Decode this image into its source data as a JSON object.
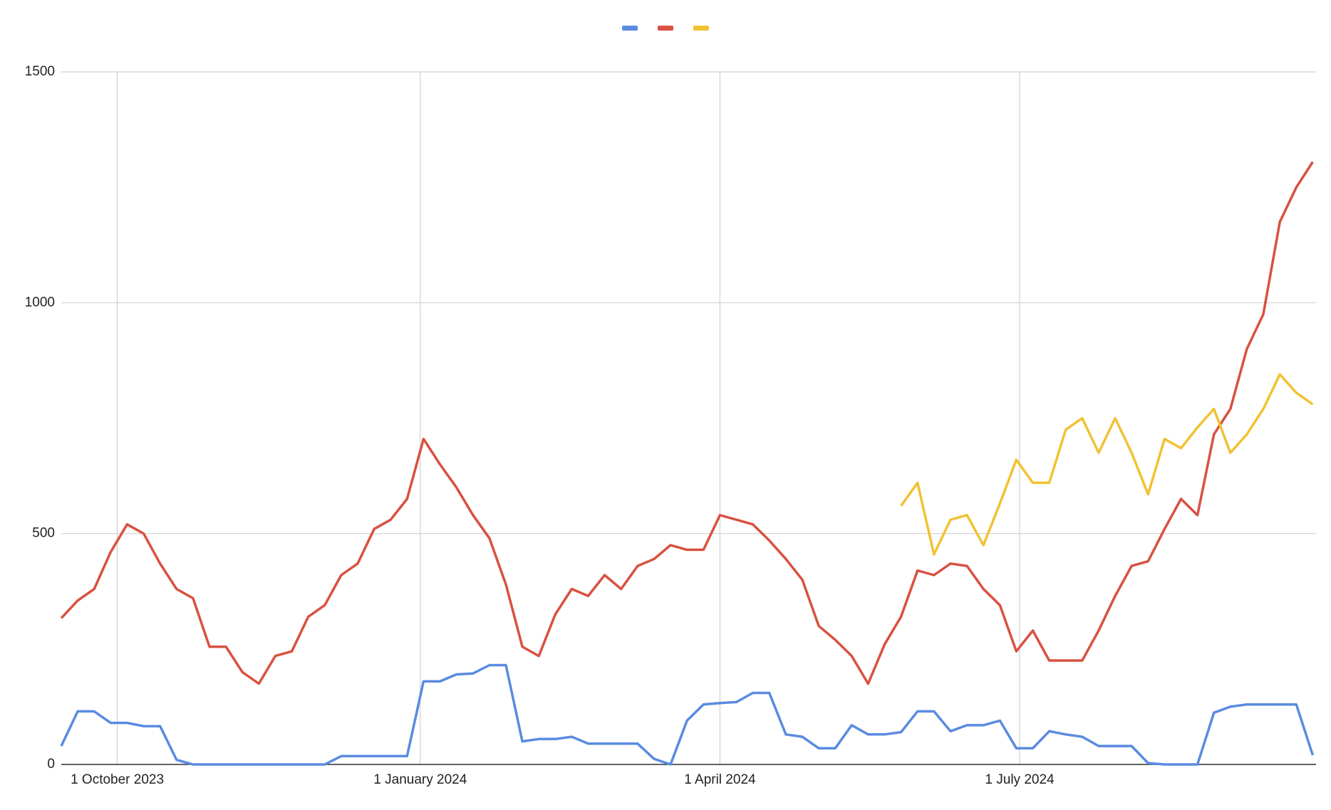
{
  "chart_data": {
    "type": "line",
    "x": [
      "2023-09-14",
      "2023-09-19",
      "2023-09-24",
      "2023-09-29",
      "2023-10-04",
      "2023-10-09",
      "2023-10-14",
      "2023-10-19",
      "2023-10-24",
      "2023-10-29",
      "2023-11-03",
      "2023-11-08",
      "2023-11-13",
      "2023-11-18",
      "2023-11-23",
      "2023-11-28",
      "2023-12-03",
      "2023-12-08",
      "2023-12-13",
      "2023-12-18",
      "2023-12-23",
      "2023-12-28",
      "2024-01-02",
      "2024-01-07",
      "2024-01-12",
      "2024-01-17",
      "2024-01-22",
      "2024-01-27",
      "2024-02-01",
      "2024-02-06",
      "2024-02-11",
      "2024-02-16",
      "2024-02-21",
      "2024-02-26",
      "2024-03-02",
      "2024-03-07",
      "2024-03-12",
      "2024-03-17",
      "2024-03-22",
      "2024-03-27",
      "2024-04-01",
      "2024-04-06",
      "2024-04-11",
      "2024-04-16",
      "2024-04-21",
      "2024-04-26",
      "2024-05-01",
      "2024-05-06",
      "2024-05-11",
      "2024-05-16",
      "2024-05-21",
      "2024-05-26",
      "2024-05-31",
      "2024-06-05",
      "2024-06-10",
      "2024-06-15",
      "2024-06-20",
      "2024-06-25",
      "2024-06-30",
      "2024-07-05",
      "2024-07-10",
      "2024-07-15",
      "2024-07-20",
      "2024-07-25",
      "2024-07-30",
      "2024-08-04",
      "2024-08-09",
      "2024-08-14",
      "2024-08-19",
      "2024-08-24",
      "2024-08-29",
      "2024-09-03",
      "2024-09-08",
      "2024-09-13",
      "2024-09-18",
      "2024-09-23",
      "2024-09-28"
    ],
    "series": [
      {
        "color": "#5a8be0",
        "values": [
          40,
          115,
          115,
          90,
          90,
          83,
          83,
          10,
          0,
          0,
          0,
          0,
          0,
          0,
          0,
          0,
          0,
          18,
          18,
          18,
          18,
          18,
          180,
          180,
          195,
          197,
          215,
          215,
          50,
          55,
          55,
          60,
          45,
          45,
          45,
          45,
          12,
          0,
          95,
          130,
          133,
          135,
          155,
          155,
          65,
          60,
          35,
          35,
          85,
          65,
          65,
          70,
          115,
          115,
          72,
          85,
          85,
          95,
          35,
          35,
          72,
          65,
          60,
          40,
          40,
          40,
          3,
          0,
          0,
          0,
          112,
          125,
          130,
          130,
          130,
          130,
          20
        ]
      },
      {
        "color": "#d95140",
        "values": [
          317,
          355,
          380,
          460,
          520,
          500,
          435,
          380,
          360,
          255,
          255,
          200,
          175,
          235,
          245,
          320,
          345,
          410,
          435,
          510,
          530,
          575,
          705,
          650,
          600,
          540,
          490,
          390,
          255,
          235,
          325,
          380,
          365,
          410,
          380,
          430,
          445,
          475,
          465,
          465,
          540,
          530,
          520,
          485,
          445,
          400,
          300,
          270,
          235,
          175,
          260,
          320,
          420,
          410,
          435,
          430,
          380,
          345,
          245,
          290,
          225,
          225,
          225,
          290,
          365,
          430,
          440,
          510,
          575,
          540,
          715,
          770,
          900,
          975,
          1175,
          1250,
          1305
        ]
      },
      {
        "color": "#f1c232",
        "values": [
          null,
          null,
          null,
          null,
          null,
          null,
          null,
          null,
          null,
          null,
          null,
          null,
          null,
          null,
          null,
          null,
          null,
          null,
          null,
          null,
          null,
          null,
          null,
          null,
          null,
          null,
          null,
          null,
          null,
          null,
          null,
          null,
          null,
          null,
          null,
          null,
          null,
          null,
          null,
          null,
          null,
          null,
          null,
          null,
          null,
          null,
          null,
          null,
          null,
          null,
          null,
          560,
          610,
          455,
          530,
          540,
          475,
          565,
          660,
          610,
          610,
          725,
          750,
          675,
          750,
          675,
          585,
          705,
          685,
          730,
          770,
          675,
          715,
          770,
          845,
          805,
          780
        ]
      }
    ],
    "xlim": [
      "2023-09-14",
      "2024-09-29"
    ],
    "xticks": [
      {
        "value": "2023-10-01",
        "label": "1 October 2023"
      },
      {
        "value": "2024-01-01",
        "label": "1 January 2024"
      },
      {
        "value": "2024-04-01",
        "label": "1 April 2024"
      },
      {
        "value": "2024-07-01",
        "label": "1 July 2024"
      }
    ],
    "ylim": [
      0,
      1500
    ],
    "yticks": [
      0,
      500,
      1000,
      1500
    ],
    "grid": true,
    "legend": "top"
  }
}
